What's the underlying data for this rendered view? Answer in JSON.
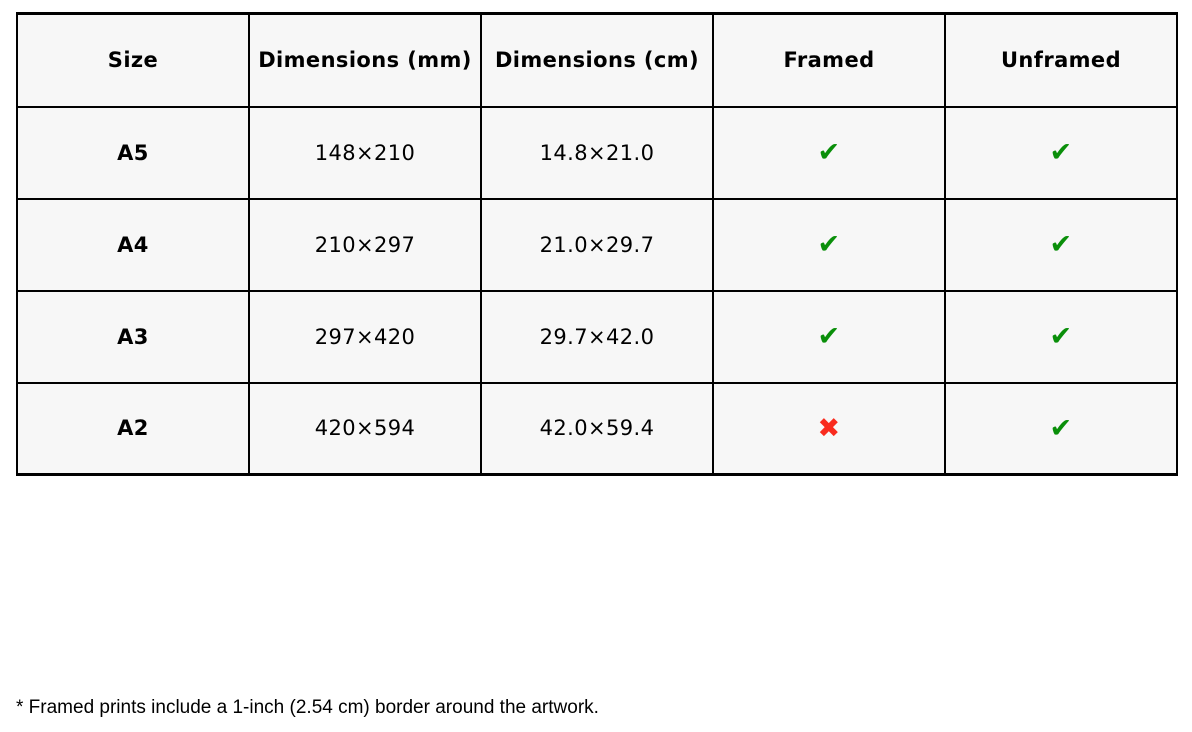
{
  "table": {
    "columns": [
      "Size",
      "Dimensions (mm)",
      "Dimensions (cm)",
      "Framed",
      "Unframed"
    ],
    "rows": [
      {
        "size": "A5",
        "mm": "148×210",
        "cm": "14.8×21.0",
        "framed": "check",
        "unframed": "check"
      },
      {
        "size": "A4",
        "mm": "210×297",
        "cm": "21.0×29.7",
        "framed": "check",
        "unframed": "check"
      },
      {
        "size": "A3",
        "mm": "297×420",
        "cm": "29.7×42.0",
        "framed": "check",
        "unframed": "check"
      },
      {
        "size": "A2",
        "mm": "420×594",
        "cm": "42.0×59.4",
        "framed": "cross",
        "unframed": "check"
      }
    ]
  },
  "icons": {
    "check": "✔",
    "cross": "✖"
  },
  "colors": {
    "check": "#0a8f0a",
    "cross": "#f92b1e",
    "cell_bg": "#f7f7f7",
    "border": "#000000"
  },
  "footnote": "* Framed prints include a 1-inch (2.54 cm) border around the artwork."
}
